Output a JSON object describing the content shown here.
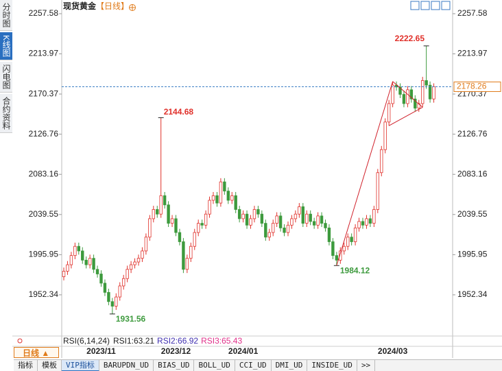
{
  "chart_data": {
    "type": "candlestick",
    "title": "现货黄金",
    "period": "【日线】",
    "up_color": "#e0302a",
    "down_color": "#3d9a3d",
    "ylim": [
      1909.1,
      2266.5
    ],
    "yticks": [
      2257.58,
      2213.97,
      2170.37,
      2126.76,
      2083.16,
      2039.55,
      1995.95,
      1952.34
    ],
    "categories": [
      null,
      null,
      null,
      null,
      null,
      null,
      null,
      null,
      null,
      null,
      "2023/11",
      null,
      null,
      null,
      null,
      null,
      null,
      null,
      null,
      null,
      null,
      null,
      null,
      null,
      null,
      null,
      null,
      null,
      null,
      null,
      "2023/12",
      null,
      null,
      null,
      null,
      null,
      null,
      null,
      null,
      null,
      null,
      null,
      null,
      null,
      null,
      null,
      null,
      null,
      "2024/01",
      null,
      null,
      null,
      null,
      null,
      null,
      null,
      null,
      null,
      null,
      null,
      null,
      null,
      null,
      null,
      null,
      null,
      null,
      null,
      null,
      null,
      null,
      null,
      null,
      null,
      null,
      null,
      null,
      null,
      null,
      null,
      null,
      null,
      null,
      null,
      null,
      null,
      null,
      null,
      "2024/03",
      null,
      null,
      null,
      null,
      null,
      null,
      null,
      null,
      null,
      null,
      null
    ],
    "open": [
      1972,
      1978,
      1985,
      1995,
      2005,
      2000,
      1990,
      1985,
      1992,
      1980,
      1975,
      1965,
      1955,
      1945,
      1940,
      1950,
      1962,
      1970,
      1980,
      1985,
      1988,
      1992,
      2000,
      2015,
      2035,
      2045,
      2040,
      2060,
      2050,
      2030,
      2035,
      2020,
      2010,
      1980,
      1992,
      2005,
      2020,
      2030,
      2028,
      2040,
      2055,
      2060,
      2052,
      2075,
      2065,
      2055,
      2060,
      2045,
      2035,
      2040,
      2028,
      2035,
      2045,
      2040,
      2030,
      2015,
      2020,
      2030,
      2038,
      2025,
      2020,
      2028,
      2035,
      2040,
      2048,
      2030,
      2040,
      2032,
      2028,
      2038,
      2030,
      2025,
      2010,
      1995,
      1990,
      2000,
      2005,
      2015,
      2010,
      2025,
      2032,
      2028,
      2035,
      2030,
      2045,
      2085,
      2110,
      2140,
      2160,
      2180,
      2178,
      2170,
      2160,
      2175,
      2165,
      2155,
      2160,
      2185,
      2180,
      2165
    ],
    "high": [
      1982,
      1989,
      1999,
      2009,
      2009,
      2004,
      1994,
      1996,
      1996,
      1984,
      1979,
      1969,
      1959,
      1949,
      1954,
      1966,
      1974,
      1984,
      1989,
      1992,
      1996,
      2004,
      2019,
      2039,
      2049,
      2049,
      2144.68,
      2064,
      2054,
      2039,
      2039,
      2024,
      2014,
      1996,
      2009,
      2024,
      2034,
      2034,
      2044,
      2059,
      2064,
      2064,
      2079,
      2079,
      2069,
      2064,
      2064,
      2049,
      2044,
      2044,
      2039,
      2049,
      2049,
      2044,
      2034,
      2024,
      2034,
      2042,
      2042,
      2029,
      2032,
      2039,
      2044,
      2052,
      2052,
      2044,
      2044,
      2036,
      2042,
      2042,
      2034,
      2029,
      2014,
      1999,
      2004,
      2009,
      2019,
      2019,
      2029,
      2036,
      2036,
      2039,
      2039,
      2049,
      2089,
      2114,
      2144,
      2164,
      2184,
      2184,
      2182,
      2174,
      2179,
      2179,
      2169,
      2164,
      2189,
      2222.65,
      2184,
      2182
    ],
    "low": [
      1968,
      1974,
      1981,
      1991,
      1996,
      1986,
      1981,
      1981,
      1976,
      1971,
      1961,
      1951,
      1941,
      1931.56,
      1936,
      1946,
      1958,
      1966,
      1976,
      1981,
      1984,
      1988,
      1996,
      2011,
      2031,
      2036,
      2036,
      2046,
      2026,
      2026,
      2016,
      2006,
      1976,
      1976,
      1988,
      2001,
      2016,
      2024,
      2024,
      2036,
      2051,
      2048,
      2048,
      2061,
      2051,
      2051,
      2041,
      2031,
      2031,
      2024,
      2024,
      2031,
      2036,
      2026,
      2011,
      2011,
      2016,
      2026,
      2021,
      2016,
      2016,
      2024,
      2031,
      2036,
      2026,
      2026,
      2028,
      2024,
      2024,
      2026,
      2021,
      2006,
      1991,
      1984.12,
      1986,
      1996,
      2001,
      2006,
      2006,
      2021,
      2024,
      2024,
      2026,
      2026,
      2041,
      2081,
      2106,
      2136,
      2156,
      2174,
      2166,
      2156,
      2156,
      2161,
      2151,
      2151,
      2156,
      2176,
      2161,
      2161
    ],
    "close": [
      1978,
      1985,
      1995,
      2005,
      2000,
      1990,
      1985,
      1992,
      1980,
      1975,
      1965,
      1955,
      1945,
      1940,
      1950,
      1962,
      1970,
      1980,
      1985,
      1988,
      1992,
      2000,
      2015,
      2035,
      2045,
      2040,
      2060,
      2050,
      2030,
      2035,
      2020,
      2010,
      1980,
      1992,
      2005,
      2020,
      2030,
      2028,
      2040,
      2055,
      2060,
      2052,
      2075,
      2065,
      2055,
      2060,
      2045,
      2035,
      2040,
      2028,
      2035,
      2045,
      2040,
      2030,
      2015,
      2020,
      2030,
      2038,
      2025,
      2020,
      2028,
      2035,
      2040,
      2048,
      2030,
      2040,
      2032,
      2028,
      2038,
      2030,
      2025,
      2010,
      1995,
      1990,
      2000,
      2005,
      2015,
      2010,
      2025,
      2032,
      2028,
      2035,
      2030,
      2045,
      2085,
      2110,
      2140,
      2160,
      2180,
      2178,
      2170,
      2160,
      2175,
      2165,
      2155,
      2160,
      2185,
      2180,
      2165,
      2178.26
    ],
    "indicator": {
      "name": "RSI(6,14,24)",
      "lines": [
        {
          "label": "RSI1:63.21",
          "color": "#222222"
        },
        {
          "label": "RSI2:66.92",
          "color": "#4030b0"
        },
        {
          "label": "RSI3:65.43",
          "color": "#e0308a"
        }
      ]
    }
  },
  "ui": {
    "sidebar": [
      "分时图",
      "K线图",
      "闪电图",
      "合约资料"
    ],
    "period_button": "日线 ▲",
    "tabs": [
      "指标",
      "模板",
      "VIP指标",
      "BARUPDN_UD",
      "BIAS_UD",
      "BOLL_UD",
      "CCI_UD",
      "DMI_UD",
      "INSIDE_UD",
      ">>"
    ]
  }
}
